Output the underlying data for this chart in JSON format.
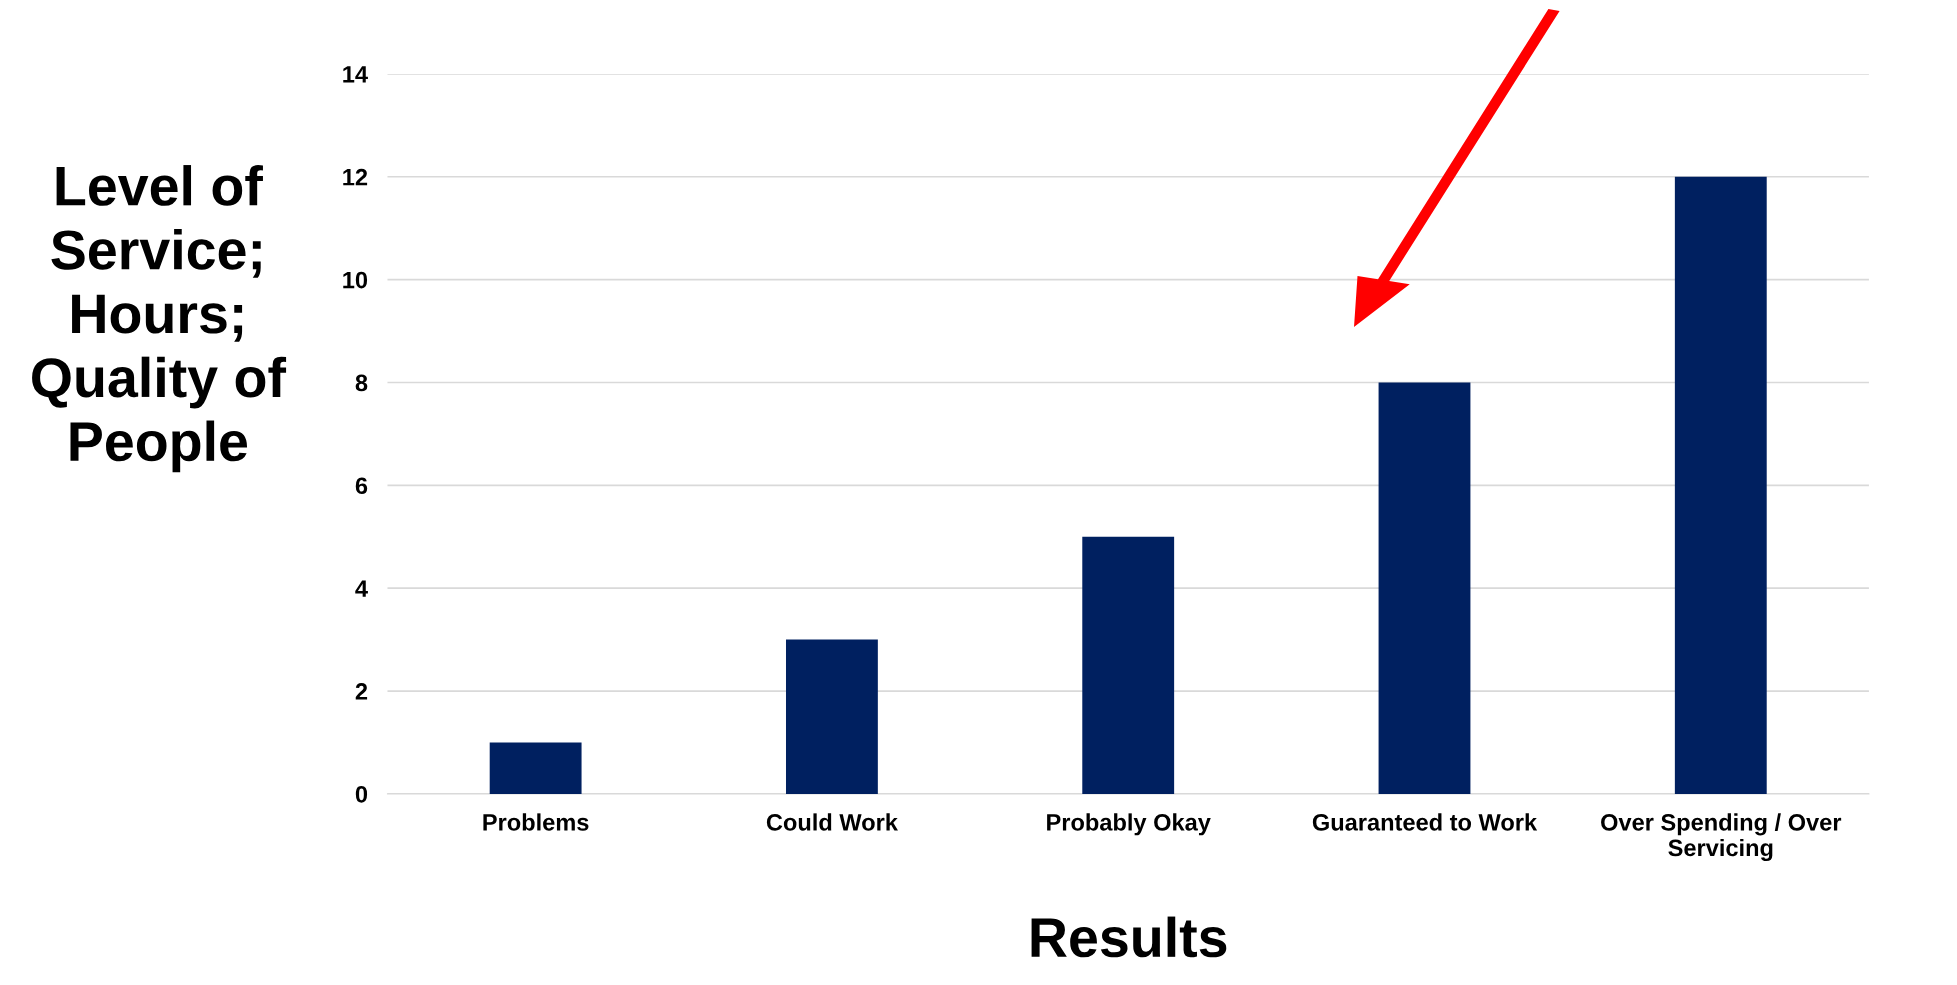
{
  "chart_data": {
    "type": "bar",
    "xlabel": "Results",
    "ylabel": "Level of\nService;\nHours;\nQuality of\nPeople",
    "categories": [
      "Problems",
      "Could Work",
      "Probably Okay",
      "Guaranteed to Work",
      "Over Spending / Over\nServicing"
    ],
    "values": [
      1,
      3,
      5,
      8,
      12
    ],
    "color": "#002060",
    "ylim": [
      0,
      14
    ],
    "yticks": [
      0,
      2,
      4,
      6,
      8,
      10,
      12,
      14
    ],
    "grid": "y",
    "legend": false
  }
}
